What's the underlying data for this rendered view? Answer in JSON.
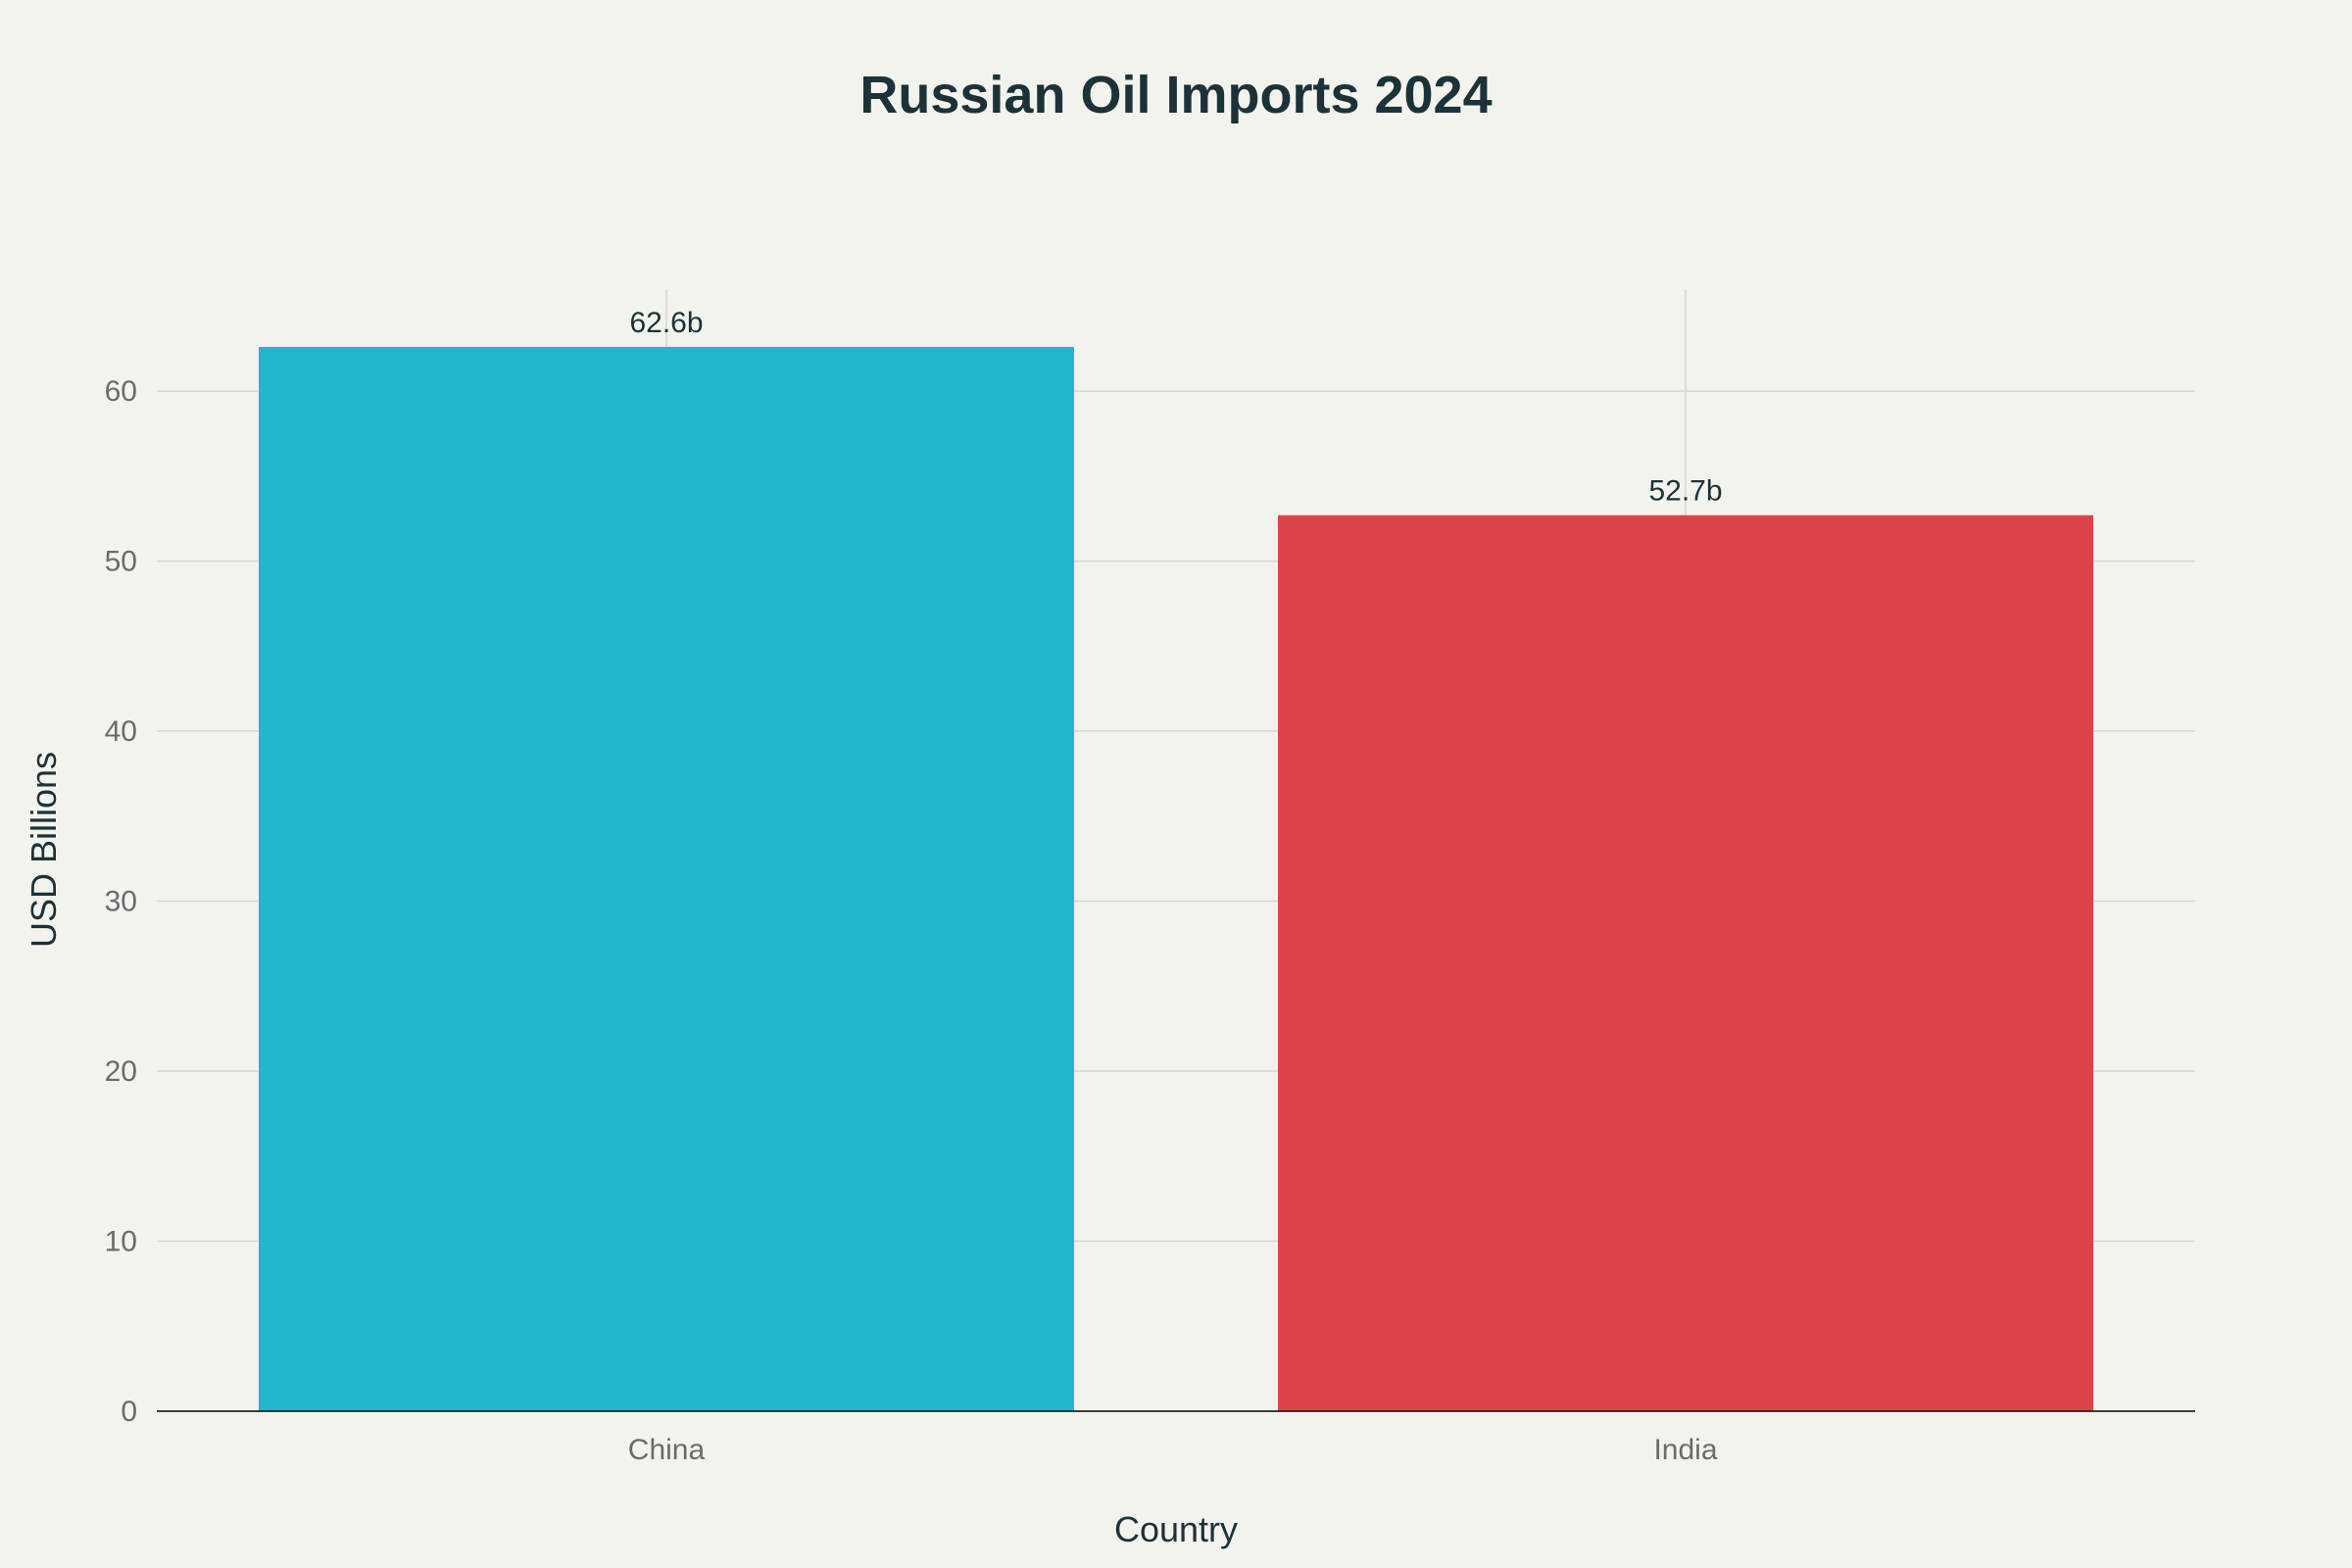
{
  "chart_data": {
    "type": "bar",
    "title": "Russian Oil Imports 2024",
    "xlabel": "Country",
    "ylabel": "USD Billions",
    "categories": [
      "China",
      "India"
    ],
    "values": [
      62.6,
      52.7
    ],
    "data_labels": [
      "62.6b",
      "52.7b"
    ],
    "colors": [
      "#21b8cd",
      "#db4548"
    ],
    "ylim": [
      0,
      66
    ],
    "yticks": [
      0,
      10,
      20,
      30,
      40,
      50,
      60
    ],
    "grid": true,
    "legend": "none"
  },
  "colors": {
    "background": "#f3f3ee",
    "text": "#1b3238",
    "tick_text": "#6b6b6b",
    "gridline": "#d6d6d0"
  }
}
